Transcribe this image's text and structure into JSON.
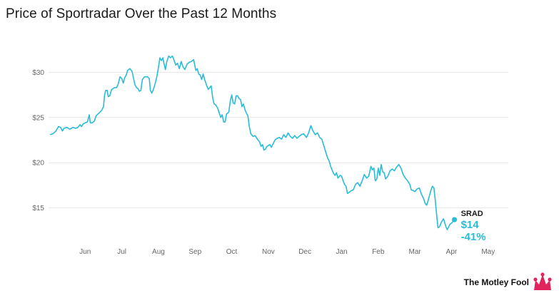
{
  "title": "Price of Sportradar Over the Past 12 Months",
  "brand": {
    "name": "The Motley Fool",
    "icon": "jester-cap-icon",
    "color": "#e0245e"
  },
  "colors": {
    "line": "#29bcd6",
    "grid": "#e6e6e6",
    "text": "#666666"
  },
  "chart_data": {
    "type": "line",
    "title": "Price of Sportradar Over the Past 12 Months",
    "xlabel": "",
    "ylabel": "",
    "x_unit": "months since start of May (approx.)",
    "xlim": [
      0,
      12.55
    ],
    "ylim": [
      11.5,
      33.5
    ],
    "grid": "horizontal",
    "y_ticks": [
      {
        "value": 15,
        "label": "$15"
      },
      {
        "value": 20,
        "label": "$20"
      },
      {
        "value": 25,
        "label": "$25"
      },
      {
        "value": 30,
        "label": "$30"
      }
    ],
    "x_ticks": [
      {
        "value": 1,
        "label": "Jun"
      },
      {
        "value": 2,
        "label": "Jul"
      },
      {
        "value": 3,
        "label": "Aug"
      },
      {
        "value": 4,
        "label": "Sep"
      },
      {
        "value": 5,
        "label": "Oct"
      },
      {
        "value": 6,
        "label": "Nov"
      },
      {
        "value": 7,
        "label": "Dec"
      },
      {
        "value": 8,
        "label": "Jan"
      },
      {
        "value": 9,
        "label": "Feb"
      },
      {
        "value": 10,
        "label": "Mar"
      },
      {
        "value": 11,
        "label": "Apr"
      },
      {
        "value": 12,
        "label": "May"
      }
    ],
    "series": [
      {
        "name": "SRAD",
        "points": [
          [
            0.04,
            23.1
          ],
          [
            0.12,
            23.2
          ],
          [
            0.2,
            23.5
          ],
          [
            0.27,
            24.0
          ],
          [
            0.33,
            23.9
          ],
          [
            0.38,
            23.5
          ],
          [
            0.42,
            23.8
          ],
          [
            0.5,
            23.9
          ],
          [
            0.58,
            23.7
          ],
          [
            0.66,
            23.9
          ],
          [
            0.74,
            23.8
          ],
          [
            0.8,
            23.9
          ],
          [
            0.86,
            24.2
          ],
          [
            0.9,
            24.0
          ],
          [
            0.95,
            24.3
          ],
          [
            1.0,
            24.4
          ],
          [
            1.06,
            24.5
          ],
          [
            1.11,
            25.3
          ],
          [
            1.14,
            24.4
          ],
          [
            1.19,
            24.4
          ],
          [
            1.25,
            24.6
          ],
          [
            1.3,
            25.2
          ],
          [
            1.38,
            25.5
          ],
          [
            1.45,
            25.8
          ],
          [
            1.5,
            26.2
          ],
          [
            1.53,
            27.5
          ],
          [
            1.56,
            28.0
          ],
          [
            1.6,
            28.0
          ],
          [
            1.63,
            27.3
          ],
          [
            1.67,
            27.4
          ],
          [
            1.72,
            28.1
          ],
          [
            1.8,
            28.3
          ],
          [
            1.86,
            28.3
          ],
          [
            1.9,
            28.7
          ],
          [
            1.95,
            29.5
          ],
          [
            2.0,
            29.3
          ],
          [
            2.04,
            28.8
          ],
          [
            2.08,
            29.4
          ],
          [
            2.12,
            29.7
          ],
          [
            2.16,
            30.2
          ],
          [
            2.22,
            30.4
          ],
          [
            2.28,
            30.1
          ],
          [
            2.32,
            29.3
          ],
          [
            2.36,
            28.6
          ],
          [
            2.4,
            28.3
          ],
          [
            2.44,
            28.2
          ],
          [
            2.48,
            27.9
          ],
          [
            2.52,
            28.0
          ],
          [
            2.56,
            29.2
          ],
          [
            2.62,
            29.5
          ],
          [
            2.7,
            29.5
          ],
          [
            2.75,
            29.3
          ],
          [
            2.78,
            28.0
          ],
          [
            2.82,
            27.7
          ],
          [
            2.86,
            28.1
          ],
          [
            2.9,
            28.6
          ],
          [
            2.95,
            29.4
          ],
          [
            3.0,
            30.5
          ],
          [
            3.04,
            31.6
          ],
          [
            3.08,
            31.3
          ],
          [
            3.12,
            31.6
          ],
          [
            3.15,
            31.0
          ],
          [
            3.19,
            30.3
          ],
          [
            3.23,
            31.2
          ],
          [
            3.28,
            31.8
          ],
          [
            3.33,
            31.6
          ],
          [
            3.38,
            31.8
          ],
          [
            3.42,
            31.4
          ],
          [
            3.47,
            30.8
          ],
          [
            3.52,
            31.0
          ],
          [
            3.57,
            30.4
          ],
          [
            3.62,
            31.2
          ],
          [
            3.67,
            30.6
          ],
          [
            3.72,
            30.3
          ],
          [
            3.78,
            30.9
          ],
          [
            3.84,
            31.1
          ],
          [
            3.9,
            31.2
          ],
          [
            3.96,
            31.4
          ],
          [
            4.02,
            30.2
          ],
          [
            4.06,
            30.4
          ],
          [
            4.1,
            29.8
          ],
          [
            4.14,
            29.7
          ],
          [
            4.18,
            29.2
          ],
          [
            4.22,
            29.8
          ],
          [
            4.26,
            29.2
          ],
          [
            4.31,
            28.6
          ],
          [
            4.36,
            28.1
          ],
          [
            4.4,
            28.3
          ],
          [
            4.44,
            28.5
          ],
          [
            4.48,
            27.2
          ],
          [
            4.52,
            26.5
          ],
          [
            4.56,
            26.4
          ],
          [
            4.62,
            26.0
          ],
          [
            4.66,
            25.5
          ],
          [
            4.7,
            25.0
          ],
          [
            4.74,
            25.3
          ],
          [
            4.78,
            24.5
          ],
          [
            4.82,
            24.5
          ],
          [
            4.86,
            25.4
          ],
          [
            4.92,
            25.6
          ],
          [
            4.96,
            26.8
          ],
          [
            5.0,
            27.5
          ],
          [
            5.04,
            26.6
          ],
          [
            5.08,
            26.5
          ],
          [
            5.12,
            27.4
          ],
          [
            5.16,
            27.4
          ],
          [
            5.2,
            27.1
          ],
          [
            5.24,
            27.0
          ],
          [
            5.28,
            26.2
          ],
          [
            5.32,
            26.5
          ],
          [
            5.36,
            25.9
          ],
          [
            5.4,
            25.5
          ],
          [
            5.44,
            25.2
          ],
          [
            5.48,
            24.0
          ],
          [
            5.52,
            23.2
          ],
          [
            5.58,
            22.9
          ],
          [
            5.64,
            23.0
          ],
          [
            5.7,
            22.6
          ],
          [
            5.76,
            22.3
          ],
          [
            5.8,
            21.8
          ],
          [
            5.84,
            22.0
          ],
          [
            5.88,
            21.4
          ],
          [
            5.92,
            21.5
          ],
          [
            5.96,
            21.8
          ],
          [
            6.0,
            21.9
          ],
          [
            6.04,
            22.0
          ],
          [
            6.08,
            21.7
          ],
          [
            6.12,
            22.0
          ],
          [
            6.18,
            22.5
          ],
          [
            6.24,
            22.7
          ],
          [
            6.3,
            22.8
          ],
          [
            6.36,
            22.6
          ],
          [
            6.42,
            23.1
          ],
          [
            6.48,
            22.8
          ],
          [
            6.54,
            23.3
          ],
          [
            6.6,
            22.9
          ],
          [
            6.66,
            22.7
          ],
          [
            6.72,
            23.0
          ],
          [
            6.78,
            22.7
          ],
          [
            6.84,
            22.9
          ],
          [
            6.9,
            23.1
          ],
          [
            6.96,
            23.2
          ],
          [
            7.0,
            23.0
          ],
          [
            7.04,
            22.8
          ],
          [
            7.1,
            23.3
          ],
          [
            7.16,
            24.1
          ],
          [
            7.22,
            23.5
          ],
          [
            7.28,
            23.1
          ],
          [
            7.34,
            23.3
          ],
          [
            7.4,
            22.8
          ],
          [
            7.46,
            22.6
          ],
          [
            7.52,
            21.8
          ],
          [
            7.58,
            21.0
          ],
          [
            7.62,
            20.5
          ],
          [
            7.66,
            20.2
          ],
          [
            7.7,
            19.6
          ],
          [
            7.74,
            19.2
          ],
          [
            7.78,
            18.8
          ],
          [
            7.82,
            18.6
          ],
          [
            7.86,
            18.9
          ],
          [
            7.9,
            18.3
          ],
          [
            7.96,
            18.6
          ],
          [
            8.0,
            18.5
          ],
          [
            8.04,
            18.0
          ],
          [
            8.08,
            17.6
          ],
          [
            8.12,
            17.4
          ],
          [
            8.16,
            16.6
          ],
          [
            8.2,
            16.7
          ],
          [
            8.26,
            16.9
          ],
          [
            8.32,
            17.0
          ],
          [
            8.38,
            17.6
          ],
          [
            8.44,
            17.8
          ],
          [
            8.5,
            17.4
          ],
          [
            8.56,
            18.0
          ],
          [
            8.62,
            18.7
          ],
          [
            8.68,
            18.3
          ],
          [
            8.74,
            18.5
          ],
          [
            8.8,
            19.6
          ],
          [
            8.84,
            19.2
          ],
          [
            8.88,
            19.4
          ],
          [
            8.92,
            18.0
          ],
          [
            8.96,
            18.2
          ],
          [
            9.0,
            19.4
          ],
          [
            9.04,
            18.6
          ],
          [
            9.08,
            19.8
          ],
          [
            9.12,
            19.0
          ],
          [
            9.16,
            18.9
          ],
          [
            9.2,
            18.2
          ],
          [
            9.26,
            18.5
          ],
          [
            9.32,
            19.1
          ],
          [
            9.38,
            19.3
          ],
          [
            9.44,
            19.1
          ],
          [
            9.5,
            19.5
          ],
          [
            9.56,
            19.8
          ],
          [
            9.62,
            19.4
          ],
          [
            9.68,
            18.7
          ],
          [
            9.74,
            18.3
          ],
          [
            9.8,
            18.0
          ],
          [
            9.86,
            17.6
          ],
          [
            9.9,
            17.0
          ],
          [
            9.96,
            16.9
          ],
          [
            10.0,
            16.8
          ],
          [
            10.06,
            17.1
          ],
          [
            10.12,
            17.2
          ],
          [
            10.18,
            16.5
          ],
          [
            10.24,
            16.0
          ],
          [
            10.28,
            15.5
          ],
          [
            10.32,
            15.3
          ],
          [
            10.36,
            15.8
          ],
          [
            10.4,
            16.4
          ],
          [
            10.44,
            17.0
          ],
          [
            10.48,
            17.4
          ],
          [
            10.52,
            17.2
          ],
          [
            10.56,
            15.7
          ],
          [
            10.6,
            14.0
          ],
          [
            10.63,
            12.8
          ],
          [
            10.67,
            12.9
          ],
          [
            10.72,
            13.4
          ],
          [
            10.78,
            13.8
          ],
          [
            10.84,
            13.0
          ],
          [
            10.88,
            12.6
          ],
          [
            10.92,
            12.9
          ],
          [
            10.96,
            13.2
          ],
          [
            11.0,
            13.3
          ],
          [
            11.04,
            13.5
          ],
          [
            11.08,
            13.7
          ]
        ]
      }
    ],
    "annotations": [
      {
        "series": "SRAD",
        "ticker": "SRAD",
        "price": "$14",
        "change": "-41%"
      }
    ]
  }
}
